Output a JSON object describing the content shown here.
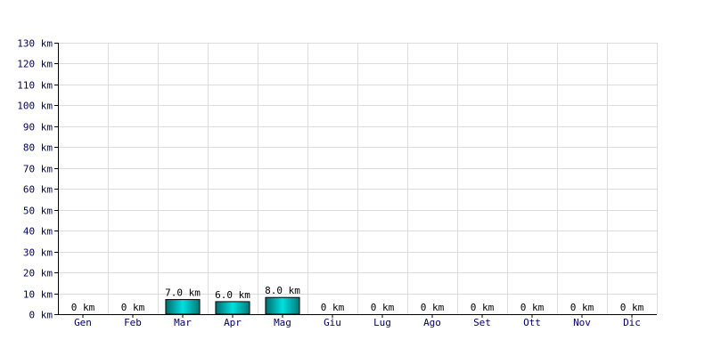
{
  "chart_data": {
    "type": "bar",
    "categories": [
      "Gen",
      "Feb",
      "Mar",
      "Apr",
      "Mag",
      "Giu",
      "Lug",
      "Ago",
      "Set",
      "Ott",
      "Nov",
      "Dic"
    ],
    "values": [
      0,
      0,
      7.0,
      6.0,
      8.0,
      0,
      0,
      0,
      0,
      0,
      0,
      0
    ],
    "data_labels": [
      "0 km",
      "0 km",
      "7.0 km",
      "6.0 km",
      "8.0 km",
      "0 km",
      "0 km",
      "0 km",
      "0 km",
      "0 km",
      "0 km",
      "0 km"
    ],
    "y_tick_labels": [
      "0 km",
      "10 km",
      "20 km",
      "30 km",
      "40 km",
      "50 km",
      "60 km",
      "70 km",
      "80 km",
      "90 km",
      "100 km",
      "110 km",
      "120 km",
      "130 km"
    ],
    "ylim": [
      0,
      130
    ],
    "y_tick_step": 10,
    "grid": true,
    "legend": "none",
    "bar_gradient_start": "#006a6a",
    "bar_gradient_mid": "#00e0e0",
    "bar_gradient_end": "#007878",
    "text_color": "#000066"
  }
}
